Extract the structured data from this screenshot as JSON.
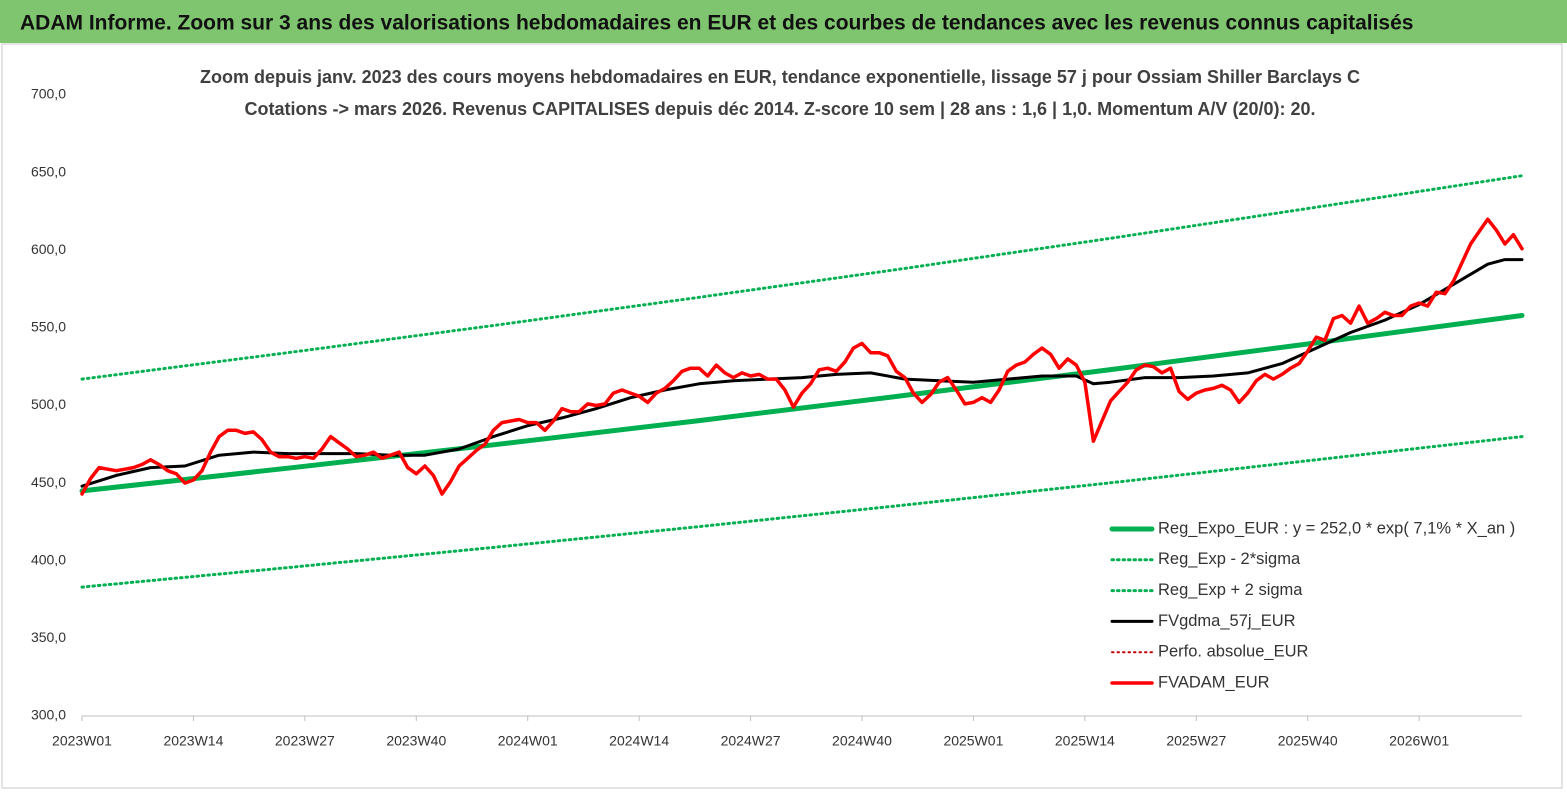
{
  "chart_data": {
    "type": "line",
    "banner": "ADAM Informe. Zoom sur 3 ans des valorisations hebdomadaires en EUR et des courbes de tendances avec les revenus connus capitalisés",
    "title": "Zoom depuis janv. 2023 des cours moyens hebdomadaires en EUR, tendance exponentielle, lissage 57 j pour Ossiam Shiller Barclays C",
    "subtitle": "Cotations -> mars 2026. Revenus CAPITALISES depuis déc 2014. Z-score 10 sem | 28 ans : 1,6 | 1,0. Momentum A/V (20/0): 20.",
    "xlim": [
      0,
      168
    ],
    "xticks": [
      {
        "value": 0,
        "label": "2023W01"
      },
      {
        "value": 13,
        "label": "2023W14"
      },
      {
        "value": 26,
        "label": "2023W27"
      },
      {
        "value": 39,
        "label": "2023W40"
      },
      {
        "value": 52,
        "label": "2024W01"
      },
      {
        "value": 65,
        "label": "2024W14"
      },
      {
        "value": 78,
        "label": "2024W27"
      },
      {
        "value": 91,
        "label": "2024W40"
      },
      {
        "value": 104,
        "label": "2025W01"
      },
      {
        "value": 117,
        "label": "2025W14"
      },
      {
        "value": 130,
        "label": "2025W27"
      },
      {
        "value": 143,
        "label": "2025W40"
      },
      {
        "value": 156,
        "label": "2026W01"
      }
    ],
    "ylim": [
      300,
      700
    ],
    "yticks": [
      {
        "value": 300,
        "label": "300,0"
      },
      {
        "value": 350,
        "label": "350,0"
      },
      {
        "value": 400,
        "label": "400,0"
      },
      {
        "value": 450,
        "label": "450,0"
      },
      {
        "value": 500,
        "label": "500,0"
      },
      {
        "value": 550,
        "label": "550,0"
      },
      {
        "value": 600,
        "label": "600,0"
      },
      {
        "value": 650,
        "label": "650,0"
      },
      {
        "value": 700,
        "label": "700,0"
      }
    ],
    "grid": false,
    "legend": "lower right",
    "series": [
      {
        "name": "Reg_Expo_EUR : y = 252,0 * exp( 7,1% * X_an )",
        "color": "#00b050",
        "style": "solid",
        "width": 5,
        "x": [
          0,
          24,
          48,
          72,
          96,
          120,
          144,
          168
        ],
        "values": [
          445,
          459.6,
          474.7,
          490.3,
          506.5,
          523.1,
          540.3,
          558
        ]
      },
      {
        "name": "Reg_Exp - 2*sigma",
        "color": "#00b050",
        "style": "dotted",
        "width": 3,
        "x": [
          0,
          24,
          48,
          72,
          96,
          120,
          144,
          168
        ],
        "values": [
          383,
          395.6,
          408.6,
          422,
          435.9,
          450.2,
          465,
          480
        ]
      },
      {
        "name": "Reg_Exp + 2 sigma",
        "color": "#00b050",
        "style": "dotted",
        "width": 3,
        "x": [
          0,
          24,
          48,
          72,
          96,
          120,
          144,
          168
        ],
        "values": [
          517,
          534,
          551.5,
          569.7,
          588.3,
          607.7,
          627.7,
          648
        ]
      },
      {
        "name": "FVgdma_57j_EUR",
        "color": "#000000",
        "style": "solid",
        "width": 3,
        "x": [
          0,
          4,
          8,
          12,
          16,
          20,
          24,
          28,
          32,
          36,
          40,
          44,
          48,
          52,
          56,
          60,
          64,
          68,
          72,
          76,
          80,
          84,
          88,
          92,
          96,
          100,
          104,
          108,
          112,
          116,
          118,
          120,
          124,
          128,
          132,
          136,
          140,
          144,
          148,
          152,
          156,
          160,
          164,
          166,
          168
        ],
        "values": [
          448,
          455,
          460,
          461,
          468,
          470,
          469,
          469,
          469,
          468,
          468,
          472,
          480,
          487,
          492,
          498,
          505,
          510,
          514,
          516,
          517,
          518,
          520,
          521,
          517,
          516,
          515,
          517,
          519,
          519,
          514,
          515,
          518,
          518,
          519,
          521,
          527,
          537,
          547,
          555,
          565,
          578,
          591,
          594,
          594
        ]
      },
      {
        "name": "Perfo. absolue_EUR",
        "color": "#c00000",
        "style": "dotted",
        "width": 2,
        "x": [],
        "values": []
      },
      {
        "name": "FVADAM_EUR",
        "color": "#ff0000",
        "style": "solid",
        "width": 3.5,
        "x": [
          0,
          1,
          2,
          3,
          4,
          5,
          6,
          7,
          8,
          9,
          10,
          11,
          12,
          13,
          14,
          15,
          16,
          17,
          18,
          19,
          20,
          21,
          22,
          23,
          24,
          25,
          26,
          27,
          28,
          29,
          30,
          31,
          32,
          33,
          34,
          35,
          36,
          37,
          38,
          39,
          40,
          41,
          42,
          43,
          44,
          45,
          46,
          47,
          48,
          49,
          50,
          51,
          52,
          53,
          54,
          55,
          56,
          57,
          58,
          59,
          60,
          61,
          62,
          63,
          64,
          65,
          66,
          67,
          68,
          69,
          70,
          71,
          72,
          73,
          74,
          75,
          76,
          77,
          78,
          79,
          80,
          81,
          82,
          83,
          84,
          85,
          86,
          87,
          88,
          89,
          90,
          91,
          92,
          93,
          94,
          95,
          96,
          97,
          98,
          99,
          100,
          101,
          102,
          103,
          104,
          105,
          106,
          107,
          108,
          109,
          110,
          111,
          112,
          113,
          114,
          115,
          116,
          117,
          118,
          119,
          120,
          121,
          122,
          123,
          124,
          125,
          126,
          127,
          128,
          129,
          130,
          131,
          132,
          133,
          134,
          135,
          136,
          137,
          138,
          139,
          140,
          141,
          142,
          143,
          144,
          145,
          146,
          147,
          148,
          149,
          150,
          151,
          152,
          153,
          154,
          155,
          156,
          157,
          158,
          159,
          160,
          161,
          162,
          163,
          164,
          165,
          166,
          167,
          168
        ],
        "values": [
          443,
          453,
          460,
          459,
          458,
          459,
          460,
          462,
          465,
          462,
          458,
          456,
          450,
          452,
          458,
          470,
          480,
          484,
          484,
          482,
          483,
          478,
          470,
          467,
          467,
          466,
          467,
          466,
          472,
          480,
          476,
          472,
          467,
          468,
          470,
          466,
          468,
          470,
          460,
          456,
          461,
          455,
          443,
          451,
          461,
          466,
          471,
          475,
          484,
          489,
          490,
          491,
          489,
          489,
          484,
          490,
          498,
          496,
          496,
          501,
          500,
          501,
          508,
          510,
          508,
          506,
          502,
          508,
          511,
          516,
          522,
          524,
          524,
          519,
          526,
          521,
          518,
          521,
          519,
          520,
          517,
          517,
          510,
          499,
          508,
          514,
          523,
          524,
          522,
          528,
          537,
          540,
          534,
          534,
          532,
          522,
          518,
          508,
          502,
          507,
          515,
          518,
          510,
          501,
          502,
          505,
          502,
          510,
          522,
          526,
          528,
          533,
          537,
          533,
          524,
          530,
          526,
          515,
          477,
          490,
          503,
          509,
          515,
          523,
          526,
          525,
          521,
          524,
          509,
          504,
          508,
          510,
          511,
          513,
          510,
          502,
          508,
          516,
          520,
          517,
          520,
          524,
          527,
          535,
          544,
          542,
          556,
          558,
          553,
          564,
          553,
          556,
          560,
          558,
          558,
          564,
          566,
          564,
          573,
          572,
          580,
          592,
          604,
          612,
          620,
          613,
          604,
          610,
          601
        ]
      }
    ]
  }
}
